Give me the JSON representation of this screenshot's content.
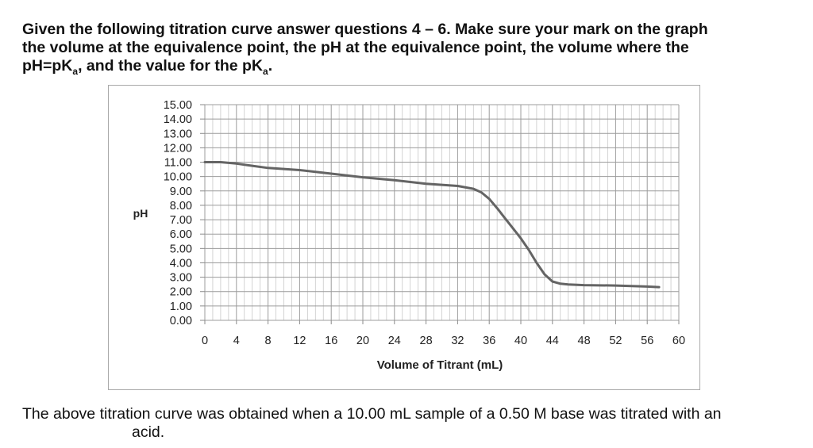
{
  "intro": {
    "line1": "Given the following titration curve answer questions 4 – 6.  Make sure your mark on the graph",
    "line2": "the volume at the equivalence point, the pH at the equivalence point, the volume where the",
    "line3_a": "pH=pK",
    "line3_sub1": "a",
    "line3_b": ", and the value for the pK",
    "line3_sub2": "a",
    "line3_c": "."
  },
  "chart_data": {
    "type": "line",
    "xlabel": "Volume of Titrant (mL)",
    "ylabel": "pH",
    "xlim": [
      0,
      60
    ],
    "ylim": [
      0,
      15
    ],
    "xticks": [
      0,
      4,
      8,
      12,
      16,
      20,
      24,
      28,
      32,
      36,
      40,
      44,
      48,
      52,
      56,
      60
    ],
    "yticks": [
      "15.00",
      "14.00",
      "13.00",
      "12.00",
      "11.00",
      "10.00",
      "9.00",
      "8.00",
      "7.00",
      "6.00",
      "5.00",
      "4.00",
      "3.00",
      "2.00",
      "1.00",
      "0.00"
    ],
    "grid": true,
    "minor_grid_x_step": 1,
    "line_color": "#646464",
    "series": [
      {
        "x": [
          0,
          2,
          4,
          6,
          8,
          12,
          16,
          20,
          24,
          28,
          32,
          34,
          35,
          36,
          37,
          38,
          39,
          40,
          41,
          42,
          43,
          44,
          45,
          46,
          48,
          52,
          56,
          60
        ],
        "y": [
          11.0,
          11.0,
          10.9,
          10.75,
          10.6,
          10.45,
          10.2,
          9.95,
          9.75,
          9.5,
          9.35,
          9.15,
          8.9,
          8.45,
          7.8,
          7.1,
          6.4,
          5.7,
          4.9,
          4.0,
          3.2,
          2.7,
          2.55,
          2.5,
          2.45,
          2.42,
          2.35,
          2.25
        ]
      }
    ]
  },
  "footer": {
    "line1": "The above titration curve was obtained when a 10.00 mL sample of a 0.50 M base was titrated with an",
    "line2": "acid."
  }
}
